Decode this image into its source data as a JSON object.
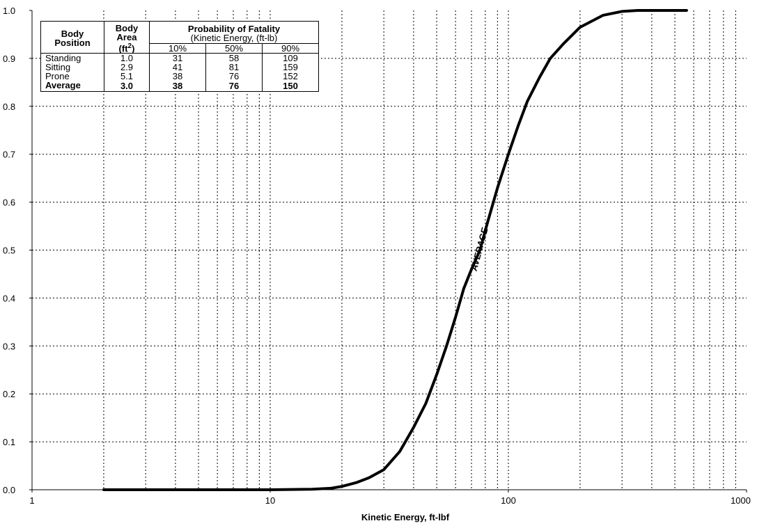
{
  "chart_data": {
    "type": "line",
    "title": "",
    "xlabel": "Kinetic Energy, ft-lbf",
    "ylabel": "",
    "xscale": "log",
    "xlim": [
      1,
      1000
    ],
    "ylim": [
      0.0,
      1.0
    ],
    "grid": true,
    "x_tick_labels": [
      "1",
      "10",
      "100",
      "1000"
    ],
    "y_tick_labels": [
      "0.0",
      "0.1",
      "0.2",
      "0.3",
      "0.4",
      "0.5",
      "0.6",
      "0.7",
      "0.8",
      "0.9",
      "1.0"
    ],
    "series": [
      {
        "name": "AVERAGE",
        "x": [
          2,
          10,
          15,
          18,
          20,
          23,
          26,
          30,
          35,
          40,
          45,
          50,
          55,
          60,
          65,
          70,
          76,
          82,
          90,
          100,
          110,
          120,
          135,
          150,
          170,
          200,
          250,
          300,
          350,
          400,
          560
        ],
        "y": [
          0.0,
          0.0,
          0.001,
          0.003,
          0.007,
          0.015,
          0.025,
          0.042,
          0.08,
          0.13,
          0.18,
          0.24,
          0.3,
          0.36,
          0.42,
          0.46,
          0.5,
          0.56,
          0.63,
          0.7,
          0.76,
          0.81,
          0.86,
          0.9,
          0.93,
          0.965,
          0.99,
          0.998,
          1.0,
          1.0,
          1.0
        ]
      }
    ],
    "annotations": [
      "AVERAGE"
    ],
    "table": {
      "headers": {
        "position": "Body Position",
        "area_line1": "Body Area",
        "area_unit": "(ft",
        "area_exp": "2",
        "area_close": ")",
        "prob_title": "Probability of Fatality",
        "prob_sub": "(Kinetic Energy, (ft-lb)",
        "p10": "10%",
        "p50": "50%",
        "p90": "90%"
      },
      "rows": [
        {
          "position": "Standing",
          "area": "1.0",
          "p10": "31",
          "p50": "58",
          "p90": "109"
        },
        {
          "position": "Sitting",
          "area": "2.9",
          "p10": "41",
          "p50": "81",
          "p90": "159"
        },
        {
          "position": "Prone",
          "area": "5.1",
          "p10": "38",
          "p50": "76",
          "p90": "152"
        },
        {
          "position": "Average",
          "area": "3.0",
          "p10": "38",
          "p50": "76",
          "p90": "150"
        }
      ]
    }
  }
}
